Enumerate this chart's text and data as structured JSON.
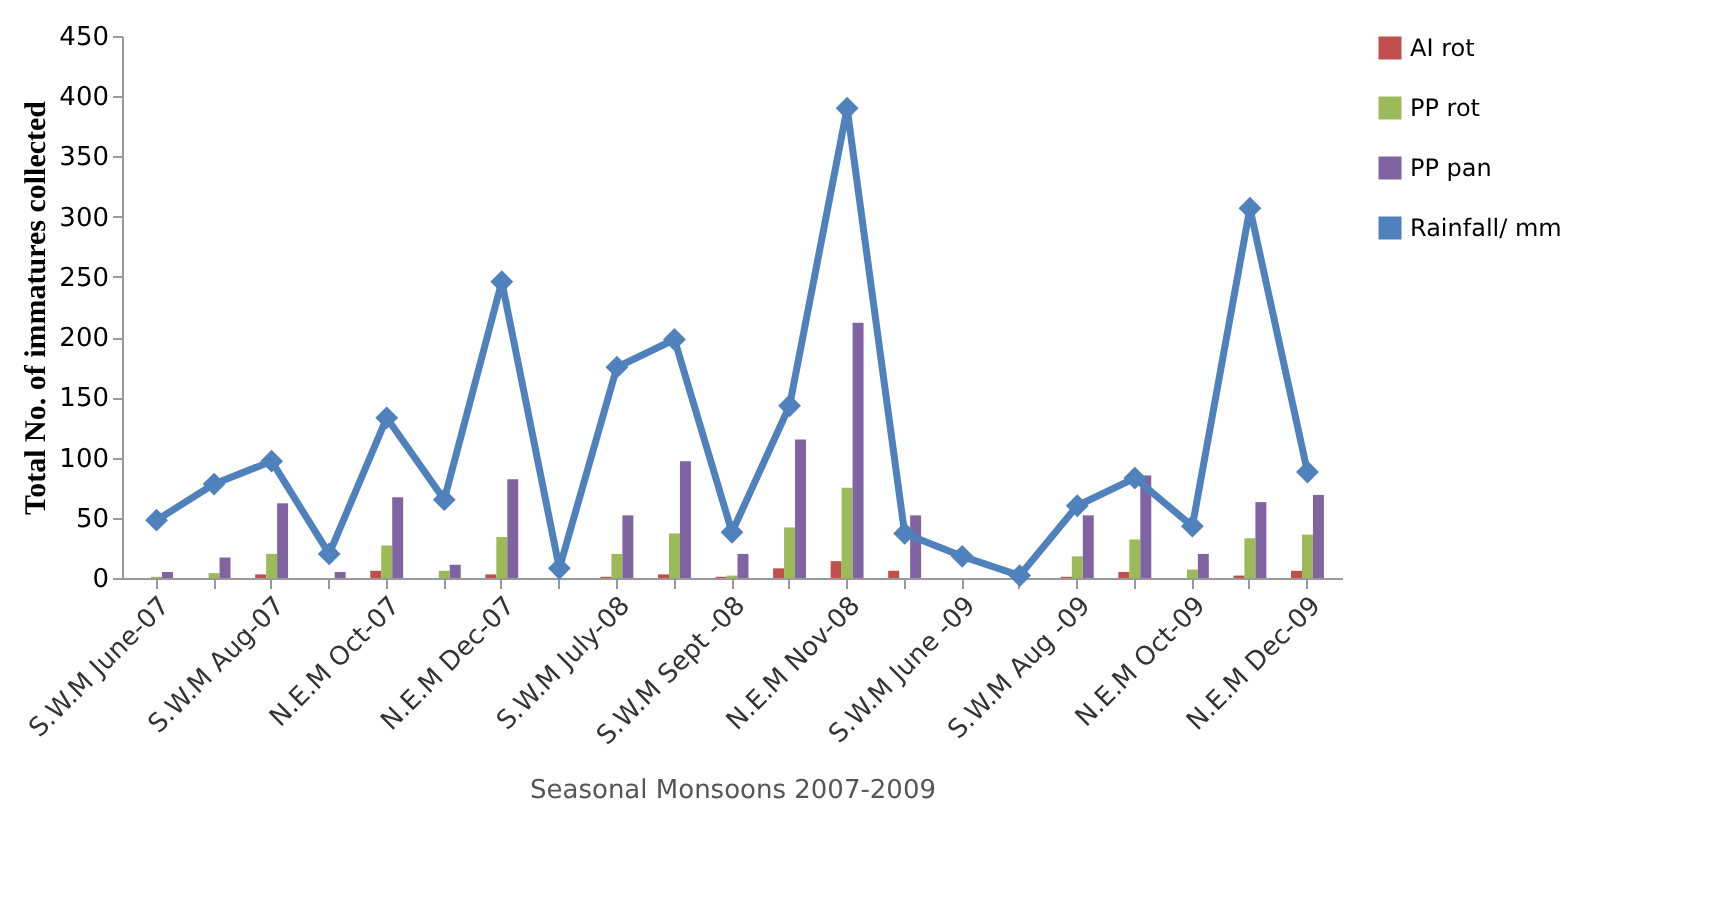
{
  "chart_data": {
    "type": "bar",
    "xlabel": "Seasonal Monsoons 2007-2009",
    "ylabel": "Total No. of immatures collected",
    "categories": [
      "S.W.M June-07",
      null,
      "S.W.M Aug-07",
      null,
      "N.E.M Oct-07",
      null,
      "N.E.M Dec-07",
      null,
      "S.W.M July-08",
      null,
      "S.W.M Sept -08",
      null,
      "N.E.M Nov-08",
      null,
      "S.W.M June -09",
      null,
      "S.W.M Aug -09",
      null,
      "N.E.M Oct-09",
      null,
      "N.E.M Dec-09"
    ],
    "series": [
      {
        "name": "AI rot",
        "color": "#c0504d",
        "values": [
          0,
          0,
          3,
          0,
          6,
          0,
          3,
          0,
          1,
          3,
          1,
          8,
          14,
          6,
          0,
          0,
          1,
          5,
          0,
          2,
          6
        ]
      },
      {
        "name": "PP rot",
        "color": "#9bbb59",
        "values": [
          1,
          4,
          20,
          0,
          27,
          6,
          34,
          0,
          20,
          37,
          2,
          42,
          75,
          null,
          0,
          0,
          18,
          32,
          7,
          33,
          36
        ]
      },
      {
        "name": "PP pan",
        "color": "#8064a2",
        "values": [
          5,
          17,
          62,
          5,
          67,
          11,
          82,
          0,
          52,
          97,
          20,
          115,
          212,
          52,
          0,
          0,
          52,
          85,
          20,
          63,
          69
        ]
      },
      {
        "name": "Rainfall/ mm",
        "type": "line",
        "color": "#4f81bd",
        "values": [
          48,
          78,
          97,
          20,
          133,
          65,
          246,
          8,
          175,
          198,
          38,
          143,
          390,
          37,
          18,
          2,
          60,
          83,
          43,
          307,
          88
        ]
      }
    ],
    "ylim": [
      0,
      450
    ],
    "yticks": [
      0,
      50,
      100,
      150,
      200,
      250,
      300,
      350,
      400,
      450
    ],
    "grid": false,
    "legend": "right",
    "marker": "diamond",
    "line_style": "solid"
  }
}
